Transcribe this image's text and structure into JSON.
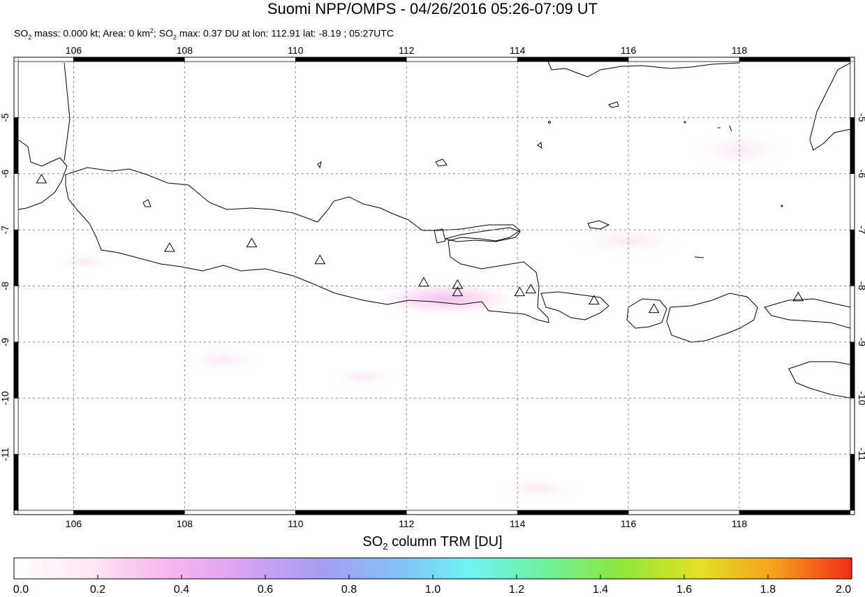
{
  "header": {
    "title": "Suomi NPP/OMPS - 04/26/2016 05:26-07:09 UT",
    "subtitle_parts": {
      "a": "SO",
      "a_sub": "2",
      "b": " mass: 0.000 kt; Area: 0 km",
      "b_sup": "2",
      "c": "; SO",
      "c_sub": "2",
      "d": " max: 0.37 DU at lon: 112.91 lat: -8.19 ; 05:27UTC"
    }
  },
  "map": {
    "lon_range": [
      105.0,
      120.0
    ],
    "lat_range": [
      -12.0,
      -4.0
    ],
    "lon_ticks": [
      "106",
      "108",
      "110",
      "112",
      "114",
      "116",
      "118"
    ],
    "lat_ticks": [
      "-5",
      "-6",
      "-7",
      "-8",
      "-9",
      "-10",
      "-11"
    ],
    "gridlines": true,
    "volcano_marker": "triangle-outline",
    "volcanoes": [
      {
        "lon": 105.42,
        "lat": -6.1
      },
      {
        "lon": 107.73,
        "lat": -7.32
      },
      {
        "lon": 109.21,
        "lat": -7.24
      },
      {
        "lon": 110.44,
        "lat": -7.54
      },
      {
        "lon": 112.31,
        "lat": -7.94
      },
      {
        "lon": 112.92,
        "lat": -7.98
      },
      {
        "lon": 112.92,
        "lat": -8.11
      },
      {
        "lon": 114.04,
        "lat": -8.11
      },
      {
        "lon": 114.24,
        "lat": -8.06
      },
      {
        "lon": 115.38,
        "lat": -8.26
      },
      {
        "lon": 116.46,
        "lat": -8.41
      },
      {
        "lon": 119.06,
        "lat": -8.2
      }
    ]
  },
  "colorbar": {
    "title_a": "SO",
    "title_sub": "2",
    "title_b": " column TRM [DU]",
    "range": [
      0.0,
      2.0
    ],
    "ticks": [
      "0.0",
      "0.2",
      "0.4",
      "0.6",
      "0.8",
      "1.0",
      "1.2",
      "1.4",
      "1.6",
      "1.8",
      "2.0"
    ],
    "colors": [
      "#ffffff",
      "#fde6f3",
      "#f7b6ee",
      "#d9a4f4",
      "#a79cf0",
      "#85bff6",
      "#6ff3f4",
      "#6ff09a",
      "#8fe83a",
      "#e4e024",
      "#f6a21c",
      "#f03018"
    ]
  }
}
